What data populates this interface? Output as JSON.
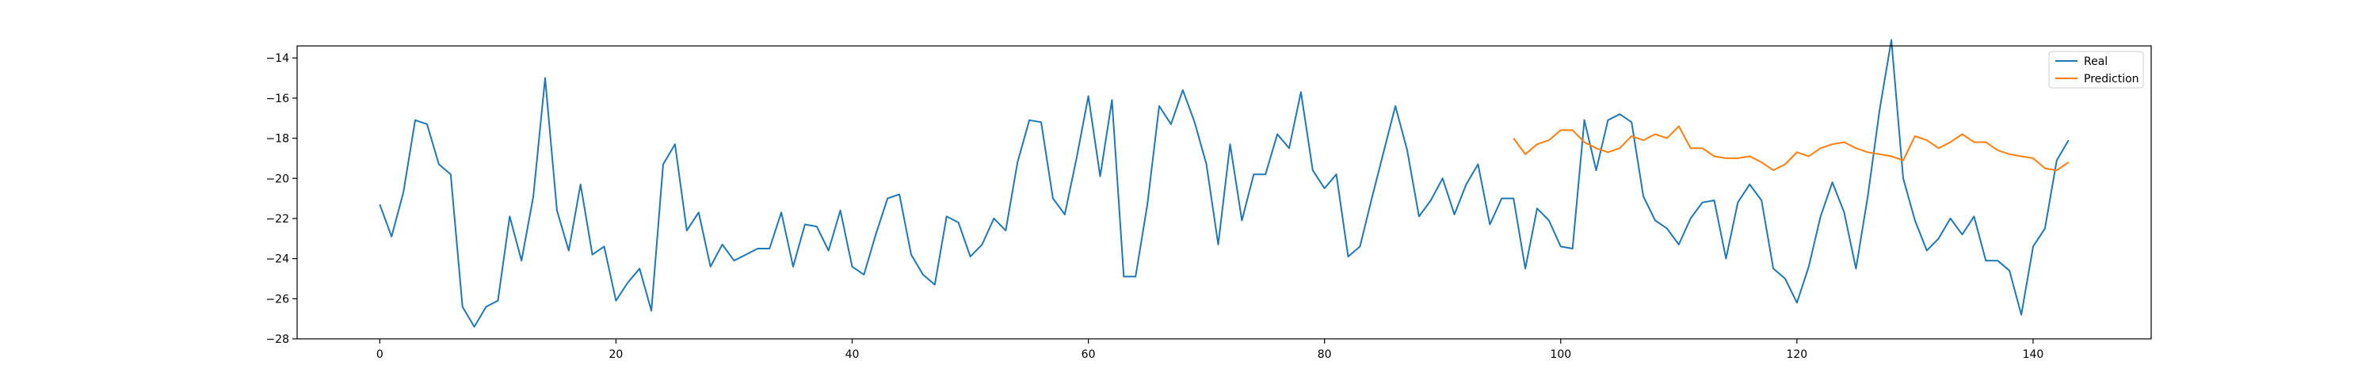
{
  "chart_data": {
    "type": "line",
    "title": "",
    "xlabel": "",
    "ylabel": "",
    "xlim": [
      -7,
      150
    ],
    "ylim": [
      -28,
      -13.4
    ],
    "xticks": [
      0,
      20,
      40,
      60,
      80,
      100,
      120,
      140
    ],
    "xtick_labels": [
      "0",
      "20",
      "40",
      "60",
      "80",
      "100",
      "120",
      "140"
    ],
    "yticks": [
      -28,
      -26,
      -24,
      -22,
      -20,
      -18,
      -16,
      -14
    ],
    "ytick_labels": [
      "−28",
      "−26",
      "−24",
      "−22",
      "−20",
      "−18",
      "−16",
      "−14"
    ],
    "grid": false,
    "legend_position": "top-right",
    "series": [
      {
        "name": "Real",
        "color": "#1f77b4",
        "x_start": 0,
        "values": [
          -21.3,
          -22.9,
          -20.7,
          -17.1,
          -17.3,
          -19.3,
          -19.8,
          -26.4,
          -27.4,
          -26.4,
          -26.1,
          -21.9,
          -24.1,
          -20.9,
          -15.0,
          -21.6,
          -23.6,
          -20.3,
          -23.8,
          -23.4,
          -26.1,
          -25.2,
          -24.5,
          -26.6,
          -19.3,
          -18.3,
          -22.6,
          -21.7,
          -24.4,
          -23.3,
          -24.1,
          -23.8,
          -23.5,
          -23.5,
          -21.7,
          -24.4,
          -22.3,
          -22.4,
          -23.6,
          -21.6,
          -24.4,
          -24.8,
          -22.8,
          -21.0,
          -20.8,
          -23.8,
          -24.8,
          -25.3,
          -21.9,
          -22.2,
          -23.9,
          -23.3,
          -22.0,
          -22.6,
          -19.2,
          -17.1,
          -17.2,
          -21.0,
          -21.8,
          -19.0,
          -15.9,
          -19.9,
          -16.1,
          -24.9,
          -24.9,
          -21.3,
          -16.4,
          -17.3,
          -15.6,
          -17.2,
          -19.3,
          -23.3,
          -18.3,
          -22.1,
          -19.8,
          -19.8,
          -17.8,
          -18.5,
          -15.7,
          -19.6,
          -20.5,
          -19.8,
          -23.9,
          -23.4,
          -21.0,
          -18.7,
          -16.4,
          -18.6,
          -21.9,
          -21.1,
          -20.0,
          -21.8,
          -20.3,
          -19.3,
          -22.3,
          -21.0,
          -21.0,
          -24.5,
          -21.5,
          -22.1,
          -23.4,
          -23.5,
          -17.1,
          -19.6,
          -17.1,
          -16.8,
          -17.2,
          -20.9,
          -22.1,
          -22.5,
          -23.3,
          -22.0,
          -21.2,
          -21.1,
          -24.0,
          -21.2,
          -20.3,
          -21.1,
          -24.5,
          -25.0,
          -26.2,
          -24.4,
          -21.9,
          -20.2,
          -21.7,
          -24.5,
          -20.9,
          -16.6,
          -13.1,
          -20.0,
          -22.1,
          -23.6,
          -23.0,
          -22.0,
          -22.8,
          -21.9,
          -24.1,
          -24.1,
          -24.6,
          -26.8,
          -23.4,
          -22.5,
          -19.1,
          -18.1
        ]
      },
      {
        "name": "Prediction",
        "color": "#ff7f0e",
        "x_start": 96,
        "values": [
          -18.0,
          -18.8,
          -18.3,
          -18.1,
          -17.6,
          -17.6,
          -18.2,
          -18.5,
          -18.7,
          -18.5,
          -17.9,
          -18.1,
          -17.8,
          -18.0,
          -17.4,
          -18.5,
          -18.5,
          -18.9,
          -19.0,
          -19.0,
          -18.9,
          -19.2,
          -19.6,
          -19.3,
          -18.7,
          -18.9,
          -18.5,
          -18.3,
          -18.2,
          -18.5,
          -18.7,
          -18.8,
          -18.9,
          -19.1,
          -17.9,
          -18.1,
          -18.5,
          -18.2,
          -17.8,
          -18.2,
          -18.2,
          -18.6,
          -18.8,
          -18.9,
          -19.0,
          -19.5,
          -19.6,
          -19.2
        ]
      }
    ]
  }
}
